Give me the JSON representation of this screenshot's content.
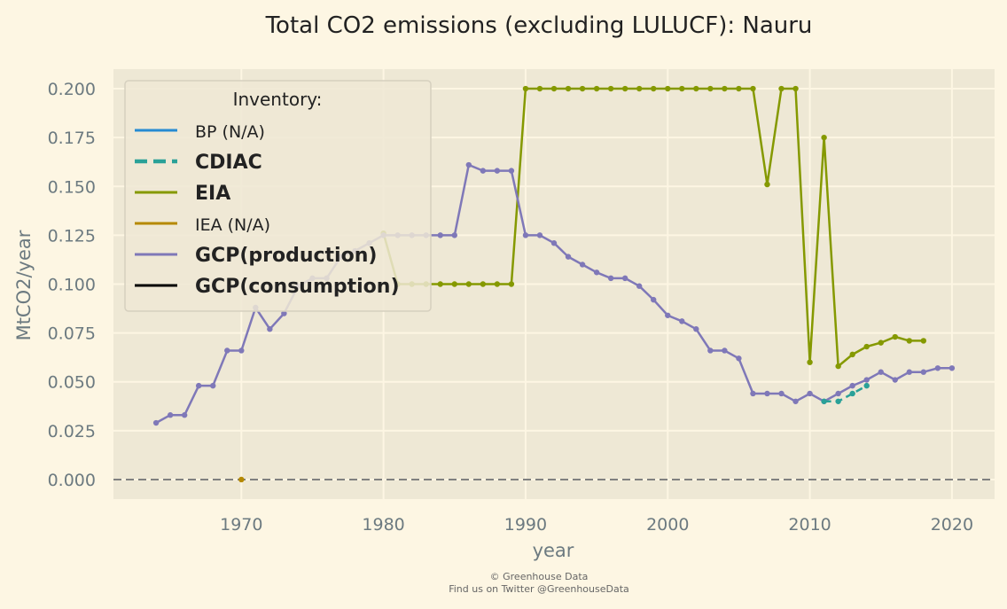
{
  "chart_data": {
    "type": "line",
    "title": "Total CO2 emissions (excluding LULUCF): Nauru",
    "xlabel": "year",
    "ylabel": "MtCO2/year",
    "xlim": [
      1961,
      2023
    ],
    "ylim": [
      -0.01,
      0.21
    ],
    "xticks": [
      "1970",
      "1980",
      "1990",
      "2000",
      "2010",
      "2020"
    ],
    "yticks": [
      "0.000",
      "0.025",
      "0.050",
      "0.075",
      "0.100",
      "0.125",
      "0.150",
      "0.175",
      "0.200"
    ],
    "grid": true,
    "zero_line": true,
    "legend": {
      "title": "Inventory:",
      "placement": "top-left",
      "entries": [
        {
          "label": "BP (N/A)",
          "color": "#268bd2",
          "dash": false,
          "bold": false
        },
        {
          "label": "CDIAC",
          "color": "#2aa198",
          "dash": true,
          "bold": true
        },
        {
          "label": "EIA",
          "color": "#859900",
          "dash": false,
          "bold": true
        },
        {
          "label": "IEA (N/A)",
          "color": "#b58900",
          "dash": false,
          "bold": false
        },
        {
          "label": "GCP(production)",
          "color": "#7f78b8",
          "dash": false,
          "bold": true
        },
        {
          "label": "GCP(consumption)",
          "color": "#000000",
          "dash": false,
          "bold": true
        }
      ]
    },
    "series": [
      {
        "name": "EIA",
        "color": "#859900",
        "dash": false,
        "x": [
          1980,
          1981,
          1982,
          1983,
          1984,
          1985,
          1986,
          1987,
          1988,
          1989,
          1990,
          1991,
          1992,
          1993,
          1994,
          1995,
          1996,
          1997,
          1998,
          1999,
          2000,
          2001,
          2002,
          2003,
          2004,
          2005,
          2006,
          2007,
          2008,
          2009,
          2010,
          2011,
          2012,
          2013,
          2014,
          2015,
          2016,
          2017,
          2018
        ],
        "values": [
          0.126,
          0.1,
          0.1,
          0.1,
          0.1,
          0.1,
          0.1,
          0.1,
          0.1,
          0.1,
          0.2,
          0.2,
          0.2,
          0.2,
          0.2,
          0.2,
          0.2,
          0.2,
          0.2,
          0.2,
          0.2,
          0.2,
          0.2,
          0.2,
          0.2,
          0.2,
          0.2,
          0.151,
          0.2,
          0.2,
          0.06,
          0.175,
          0.058,
          0.064,
          0.068,
          0.07,
          0.073,
          0.071,
          0.071
        ]
      },
      {
        "name": "GCP(production)",
        "color": "#7f78b8",
        "dash": false,
        "x": [
          1964,
          1965,
          1966,
          1967,
          1968,
          1969,
          1970,
          1971,
          1972,
          1973,
          1974,
          1975,
          1976,
          1977,
          1978,
          1979,
          1980,
          1981,
          1982,
          1983,
          1984,
          1985,
          1986,
          1987,
          1988,
          1989,
          1990,
          1991,
          1992,
          1993,
          1994,
          1995,
          1996,
          1997,
          1998,
          1999,
          2000,
          2001,
          2002,
          2003,
          2004,
          2005,
          2006,
          2007,
          2008,
          2009,
          2010,
          2011,
          2012,
          2013,
          2014,
          2015,
          2016,
          2017,
          2018,
          2019,
          2020
        ],
        "values": [
          0.029,
          0.033,
          0.033,
          0.048,
          0.048,
          0.066,
          0.066,
          0.088,
          0.077,
          0.085,
          0.099,
          0.103,
          0.103,
          0.114,
          0.117,
          0.121,
          0.125,
          0.125,
          0.125,
          0.125,
          0.125,
          0.125,
          0.161,
          0.158,
          0.158,
          0.158,
          0.125,
          0.125,
          0.121,
          0.114,
          0.11,
          0.106,
          0.103,
          0.103,
          0.099,
          0.092,
          0.084,
          0.081,
          0.077,
          0.066,
          0.066,
          0.062,
          0.044,
          0.044,
          0.044,
          0.04,
          0.044,
          0.04,
          0.044,
          0.048,
          0.051,
          0.055,
          0.051,
          0.055,
          0.055,
          0.057,
          0.057
        ]
      },
      {
        "name": "CDIAC",
        "color": "#2aa198",
        "dash": true,
        "x": [
          2011,
          2012,
          2013,
          2014
        ],
        "values": [
          0.04,
          0.04,
          0.044,
          0.048
        ]
      },
      {
        "name": "IEA (N/A)",
        "color": "#b58900",
        "dash": false,
        "x": [
          1970
        ],
        "values": [
          0.0
        ]
      }
    ]
  },
  "credits": {
    "line1": "© Greenhouse Data",
    "line2": "Find us on Twitter @GreenhouseData"
  }
}
